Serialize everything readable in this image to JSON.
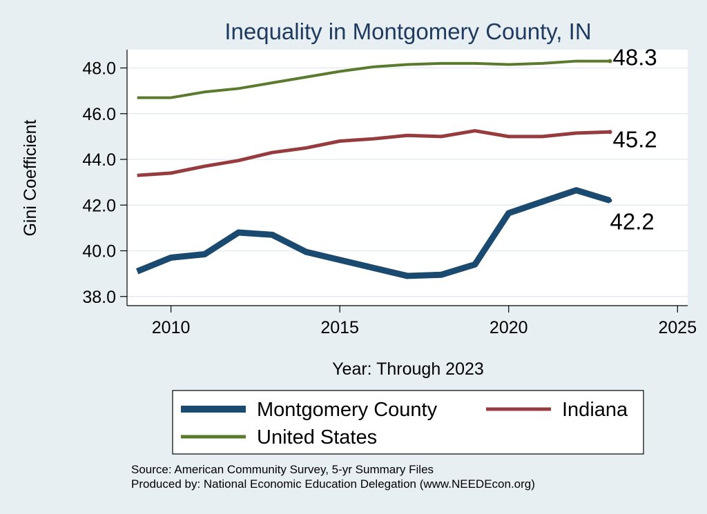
{
  "chart_data": {
    "type": "line",
    "title": "Inequality in Montgomery County, IN",
    "xlabel": "Year: Through 2023",
    "ylabel": "Gini Coefficient",
    "xlim": [
      2008.7,
      2025.3
    ],
    "ylim": [
      37.6,
      48.8
    ],
    "xticks": [
      2010,
      2015,
      2020,
      2025
    ],
    "yticks": [
      38.0,
      40.0,
      42.0,
      44.0,
      46.0,
      48.0
    ],
    "ytick_labels": [
      "38.0",
      "40.0",
      "42.0",
      "44.0",
      "46.0",
      "48.0"
    ],
    "grid": true,
    "legend_position": "bottom",
    "x": [
      2009,
      2010,
      2011,
      2012,
      2013,
      2014,
      2015,
      2016,
      2017,
      2018,
      2019,
      2020,
      2021,
      2022,
      2023
    ],
    "series": [
      {
        "name": "Montgomery County",
        "color": "#1b4a70",
        "values": [
          39.1,
          39.7,
          39.85,
          40.8,
          40.7,
          39.95,
          39.6,
          39.25,
          38.9,
          38.95,
          39.4,
          41.65,
          42.15,
          42.65,
          42.2
        ],
        "end_label": "42.2"
      },
      {
        "name": "Indiana",
        "color": "#963c3e",
        "values": [
          43.3,
          43.4,
          43.7,
          43.95,
          44.3,
          44.5,
          44.8,
          44.9,
          45.05,
          45.0,
          45.25,
          45.0,
          45.0,
          45.15,
          45.2
        ],
        "end_label": "45.2"
      },
      {
        "name": "United States",
        "color": "#5a7a2e",
        "values": [
          46.7,
          46.7,
          46.95,
          47.1,
          47.35,
          47.6,
          47.85,
          48.05,
          48.15,
          48.2,
          48.2,
          48.15,
          48.2,
          48.3,
          48.3
        ],
        "end_label": "48.3"
      }
    ]
  },
  "footer": {
    "source": "Source: American Community Survey, 5-yr Summary Files",
    "produced_by": "Produced by: National Economic Education Delegation (www.NEEDEcon.org)"
  }
}
